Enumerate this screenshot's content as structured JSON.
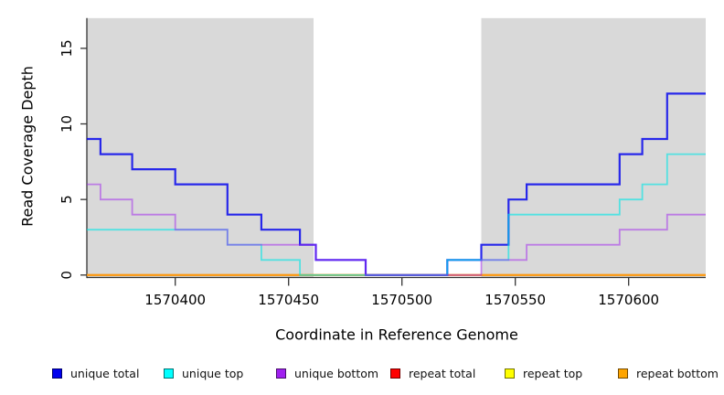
{
  "axis": {
    "line_color": "#333333",
    "tick_label_color": "#000000"
  },
  "legend": {
    "items": [
      {
        "label": "unique total",
        "color": "#0000EE"
      },
      {
        "label": "unique top",
        "color": "#00FFFF"
      },
      {
        "label": "unique bottom",
        "color": "#A020F0"
      },
      {
        "label": "repeat total",
        "color": "#FF0000"
      },
      {
        "label": "repeat top",
        "color": "#FFFF00"
      },
      {
        "label": "repeat bottom",
        "color": "#FFA500"
      }
    ]
  },
  "chart_data": {
    "type": "line",
    "step_style": "post",
    "title": "",
    "xlabel": "Coordinate in Reference Genome",
    "ylabel": "Read Coverage Depth",
    "xlim": [
      1570361,
      1570634
    ],
    "ylim": [
      0,
      17
    ],
    "x_ticks": [
      1570400,
      1570450,
      1570500,
      1570550,
      1570600
    ],
    "y_ticks": [
      0,
      5,
      10,
      15
    ],
    "grid": false,
    "legend_position": "bottom",
    "background": "#FFFFFF",
    "panel_shading": {
      "color": "#D9D9D9",
      "regions": [
        [
          1570361,
          1570461
        ],
        [
          1570535,
          1570634
        ]
      ]
    },
    "series": [
      {
        "name": "repeat total",
        "line_color": "#E00000",
        "opacity": 0.85,
        "width": 1.8,
        "x_end": 1570634,
        "steps": [
          [
            1570361,
            0
          ]
        ]
      },
      {
        "name": "repeat top",
        "line_color": "#F2F200",
        "opacity": 0.85,
        "width": 1.8,
        "x_end": 1570634,
        "steps": [
          [
            1570361,
            0
          ]
        ]
      },
      {
        "name": "repeat bottom",
        "line_color": "#FF9912",
        "opacity": 1.0,
        "width": 2.0,
        "x_end": 1570634,
        "steps": [
          [
            1570361,
            0
          ]
        ]
      },
      {
        "name": "unique total",
        "line_color": "#0000EE",
        "opacity": 0.82,
        "width": 2.2,
        "x_end": 1570634,
        "steps": [
          [
            1570361,
            9
          ],
          [
            1570367,
            8
          ],
          [
            1570381,
            7
          ],
          [
            1570400,
            6
          ],
          [
            1570423,
            4
          ],
          [
            1570438,
            3
          ],
          [
            1570455,
            2
          ],
          [
            1570462,
            1
          ],
          [
            1570484,
            0
          ],
          [
            1570520,
            1
          ],
          [
            1570535,
            2
          ],
          [
            1570547,
            5
          ],
          [
            1570555,
            6
          ],
          [
            1570596,
            8
          ],
          [
            1570606,
            9
          ],
          [
            1570617,
            12
          ]
        ]
      },
      {
        "name": "unique top",
        "line_color": "#00E5E5",
        "opacity": 0.62,
        "width": 1.8,
        "x_end": 1570634,
        "steps": [
          [
            1570361,
            3
          ],
          [
            1570423,
            2
          ],
          [
            1570438,
            1
          ],
          [
            1570455,
            0
          ],
          [
            1570520,
            1
          ],
          [
            1570547,
            4
          ],
          [
            1570596,
            5
          ],
          [
            1570606,
            6
          ],
          [
            1570617,
            8
          ]
        ]
      },
      {
        "name": "unique bottom",
        "line_color": "#A020F0",
        "opacity": 0.5,
        "width": 1.8,
        "x_end": 1570634,
        "steps": [
          [
            1570361,
            6
          ],
          [
            1570367,
            5
          ],
          [
            1570381,
            4
          ],
          [
            1570400,
            3
          ],
          [
            1570423,
            2
          ],
          [
            1570462,
            1
          ],
          [
            1570484,
            0
          ],
          [
            1570535,
            1
          ],
          [
            1570555,
            2
          ],
          [
            1570596,
            3
          ],
          [
            1570617,
            4
          ]
        ]
      }
    ]
  }
}
